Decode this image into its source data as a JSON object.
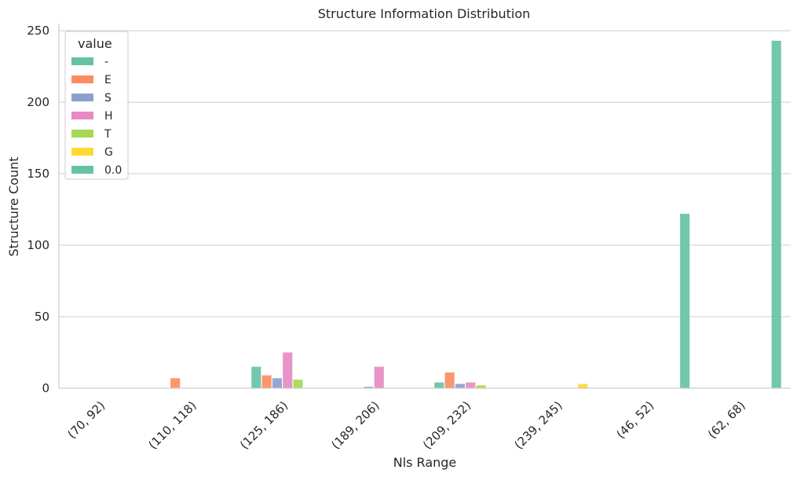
{
  "chart_data": {
    "type": "bar",
    "title": "Structure Information Distribution",
    "xlabel": "Nls Range",
    "ylabel": "Structure Count",
    "ylim": [
      0,
      255
    ],
    "yticks": [
      0,
      50,
      100,
      150,
      200,
      250
    ],
    "grid": "horizontal",
    "legend_placement": "top-left",
    "legend_title": "value",
    "categories": [
      "(70, 92)",
      "(110, 118)",
      "(125, 186)",
      "(189, 206)",
      "(209, 232)",
      "(239, 245)",
      "(46, 52)",
      "(62, 68)"
    ],
    "series": [
      {
        "name": "-",
        "color": "#66c2a5",
        "values": [
          0,
          0,
          15,
          0,
          4,
          0,
          0,
          0
        ]
      },
      {
        "name": "E",
        "color": "#fc8d62",
        "values": [
          0,
          7,
          9,
          0,
          11,
          0,
          0,
          0
        ]
      },
      {
        "name": "S",
        "color": "#8da0cb",
        "values": [
          0,
          0,
          7,
          1,
          3,
          0,
          0,
          0
        ]
      },
      {
        "name": "H",
        "color": "#e78ac3",
        "values": [
          0,
          0,
          25,
          15,
          4,
          0,
          0,
          0
        ]
      },
      {
        "name": "T",
        "color": "#a6d854",
        "values": [
          0,
          0,
          6,
          0,
          2,
          0,
          0,
          0
        ]
      },
      {
        "name": "G",
        "color": "#ffd92f",
        "values": [
          0,
          0,
          0,
          0,
          0,
          3,
          0,
          0
        ]
      },
      {
        "name": "0.0",
        "color": "#66c2a5",
        "values": [
          0,
          0,
          0,
          0,
          0,
          0,
          122,
          243
        ]
      }
    ]
  }
}
